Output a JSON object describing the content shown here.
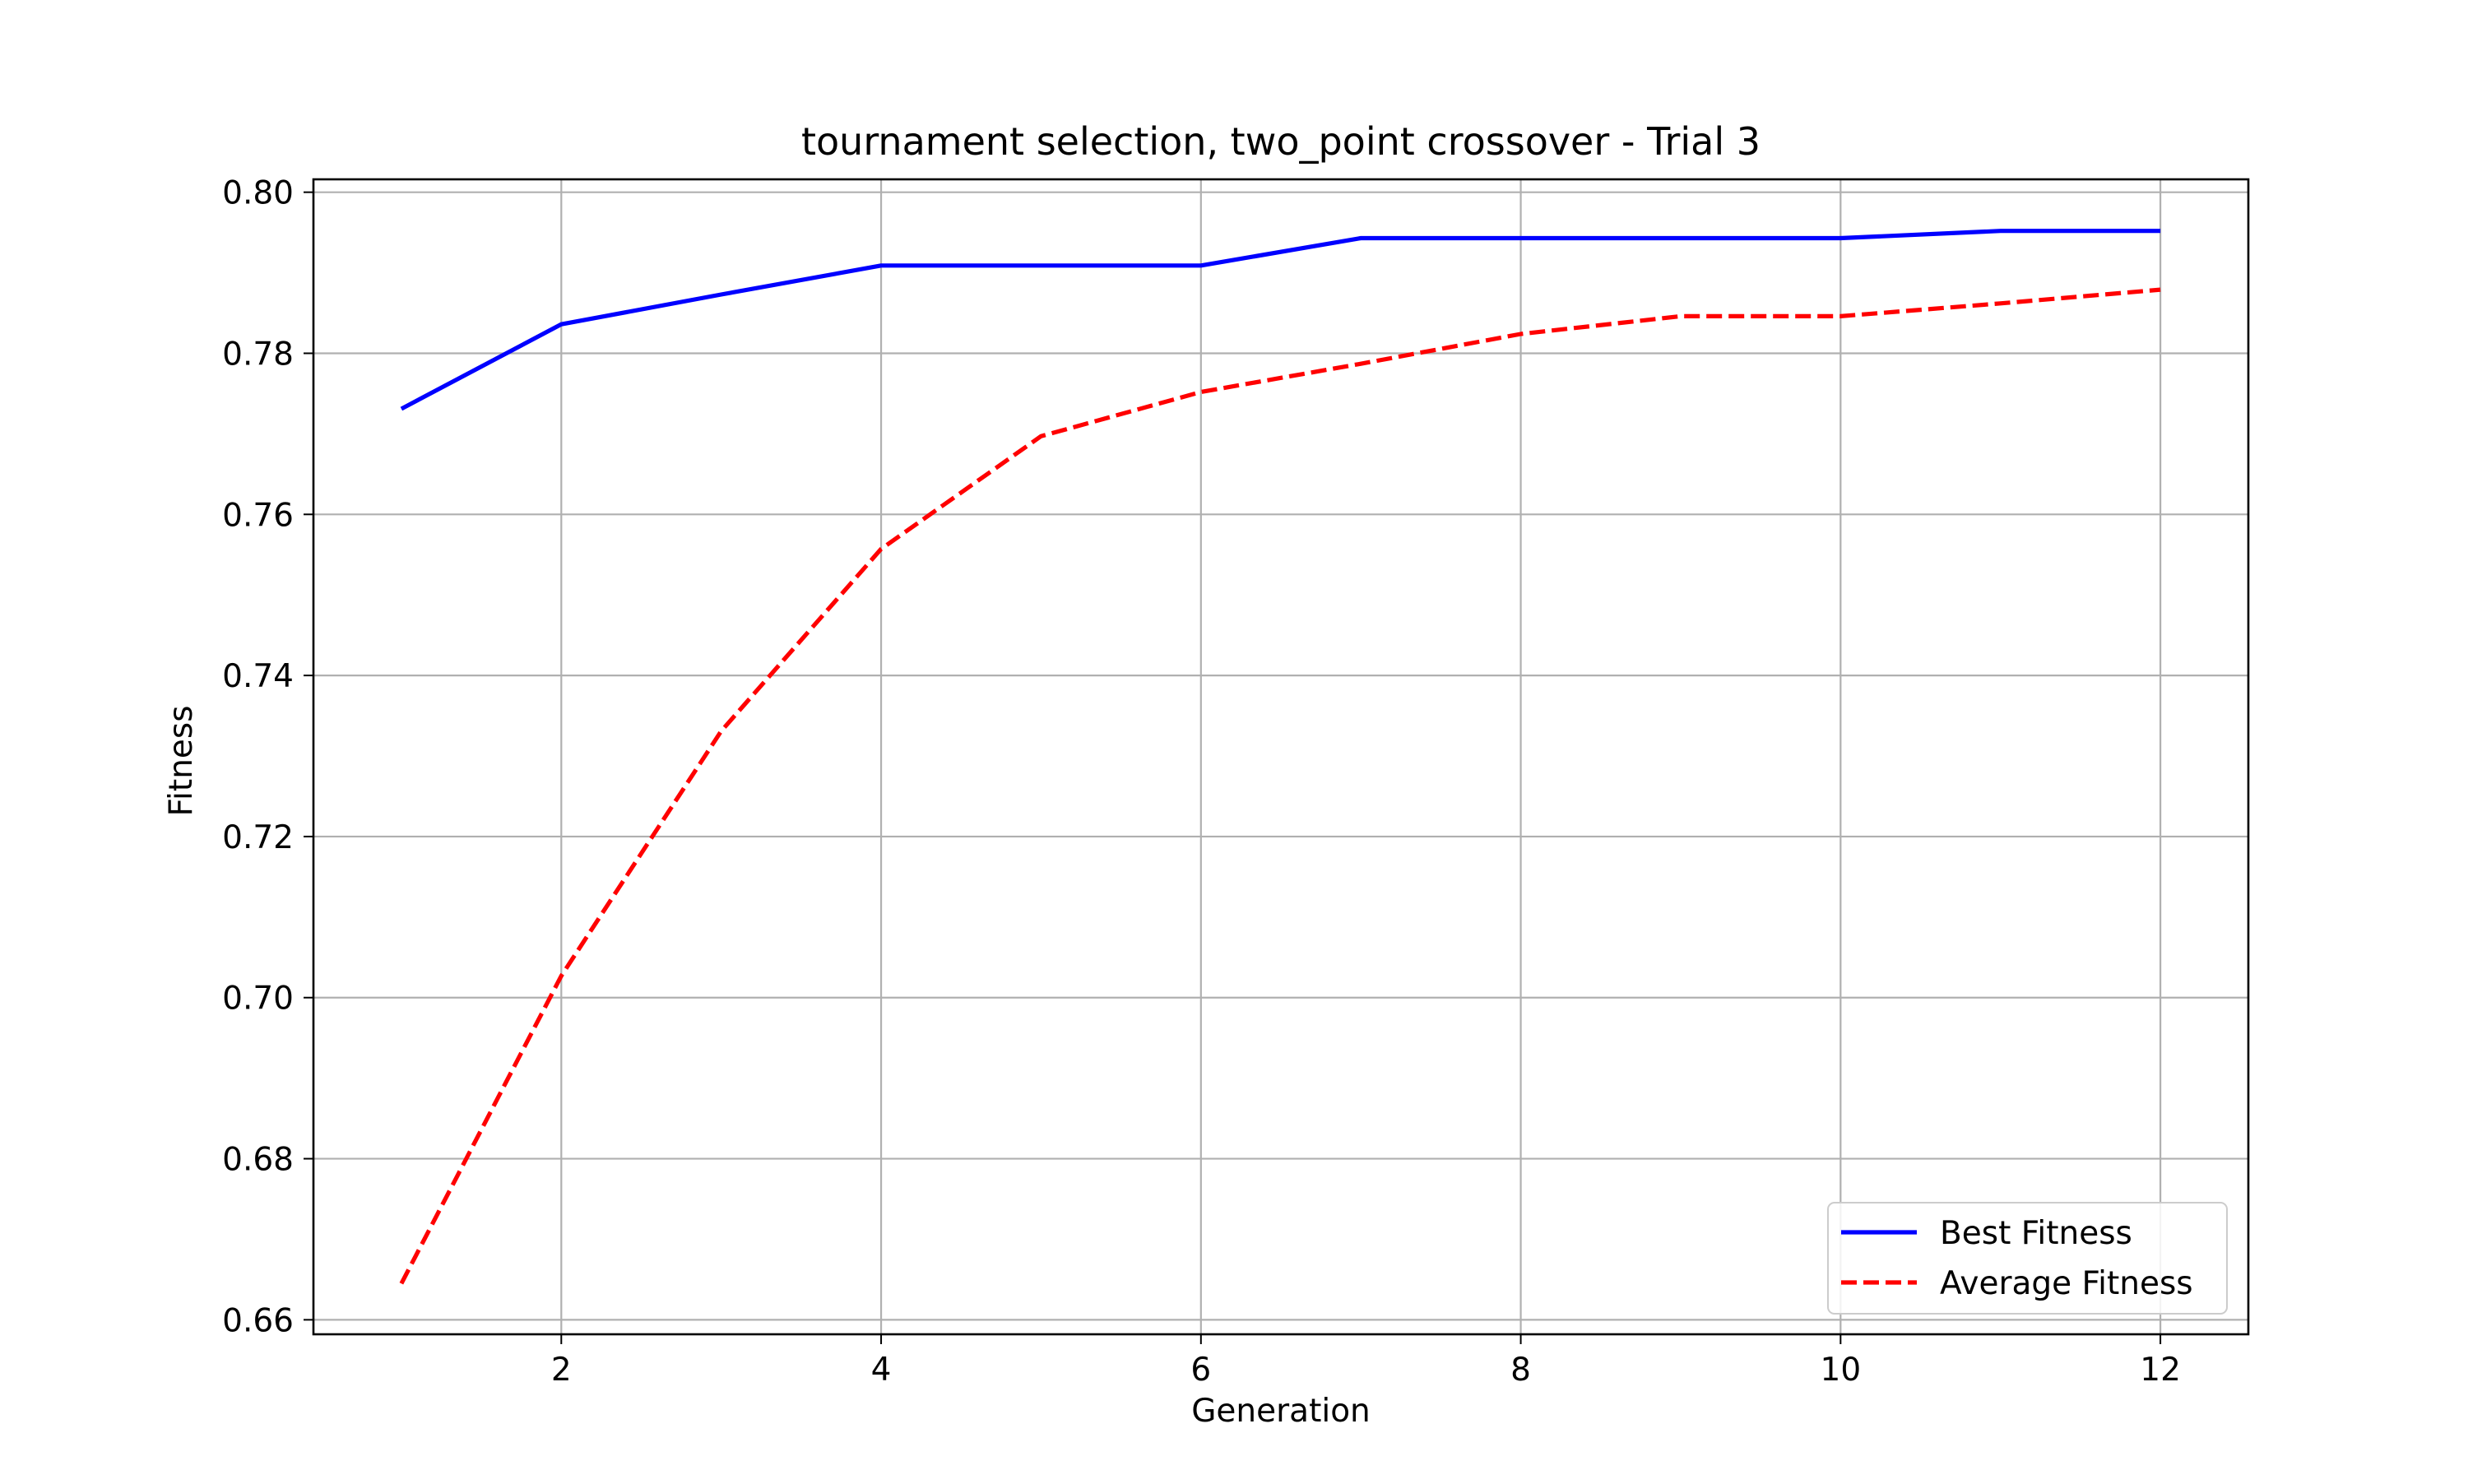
{
  "chart_data": {
    "type": "line",
    "title": "tournament selection, two_point crossover - Trial 3",
    "xlabel": "Generation",
    "ylabel": "Fitness",
    "x": [
      1,
      2,
      3,
      4,
      5,
      6,
      7,
      8,
      9,
      10,
      11,
      12
    ],
    "xlim": [
      0.45,
      12.55
    ],
    "ylim": [
      0.6582,
      0.8016
    ],
    "xticks": [
      2,
      4,
      6,
      8,
      10,
      12
    ],
    "xtick_labels": [
      "2",
      "4",
      "6",
      "8",
      "10",
      "12"
    ],
    "yticks": [
      0.66,
      0.68,
      0.7,
      0.72,
      0.74,
      0.76,
      0.78,
      0.8
    ],
    "ytick_labels": [
      "0.66",
      "0.68",
      "0.70",
      "0.72",
      "0.74",
      "0.76",
      "0.78",
      "0.80"
    ],
    "grid": true,
    "legend_position": "lower-right",
    "series": [
      {
        "name": "Best Fitness",
        "color": "#0000ff",
        "style": "solid",
        "values": [
          0.7731,
          0.7836,
          0.7873,
          0.7909,
          0.7909,
          0.7909,
          0.7943,
          0.7943,
          0.7943,
          0.7943,
          0.7952,
          0.7952
        ]
      },
      {
        "name": "Average Fitness",
        "color": "#ff0000",
        "style": "dashed",
        "values": [
          0.6645,
          0.7027,
          0.7331,
          0.7557,
          0.7697,
          0.7752,
          0.7787,
          0.7824,
          0.7846,
          0.7846,
          0.7862,
          0.7879
        ]
      }
    ]
  }
}
